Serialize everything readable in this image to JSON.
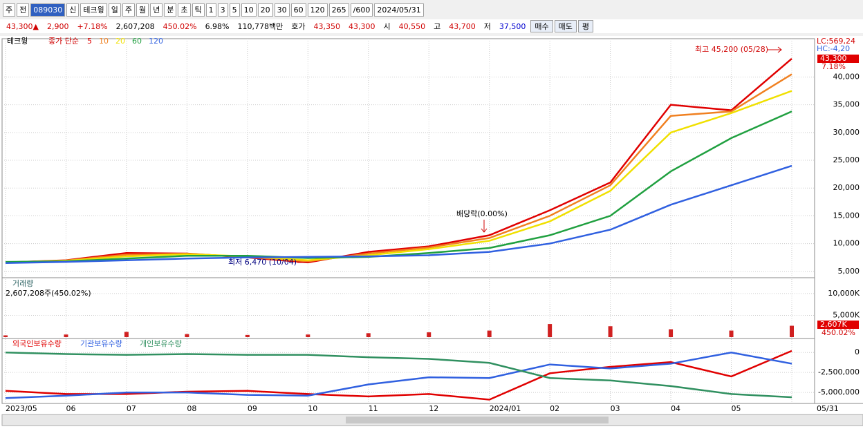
{
  "toolbar": {
    "items": [
      "주",
      "전",
      "089030",
      "신",
      "테크윙",
      "일",
      "주",
      "월",
      "년",
      "분",
      "초",
      "틱",
      "1",
      "3",
      "5",
      "10",
      "20",
      "30",
      "60",
      "120",
      "265",
      "/600",
      "2024/05/31"
    ]
  },
  "quote": {
    "items": [
      {
        "text": "43,300▲",
        "color": "#d00000"
      },
      {
        "text": "2,900",
        "color": "#d00000"
      },
      {
        "text": "+7.18%",
        "color": "#d00000"
      },
      {
        "text": "2,607,208",
        "color": "#000000"
      },
      {
        "text": "450.02%",
        "color": "#d00000"
      },
      {
        "text": "6.98%",
        "color": "#000000"
      },
      {
        "text": "110,778백만",
        "color": "#000000"
      },
      {
        "text": "호가",
        "color": "#000000"
      },
      {
        "text": "43,350",
        "color": "#d00000"
      },
      {
        "text": "43,300",
        "color": "#d00000"
      },
      {
        "text": "시",
        "color": "#000000"
      },
      {
        "text": "40,550",
        "color": "#d00000"
      },
      {
        "text": "고",
        "color": "#000000"
      },
      {
        "text": "43,700",
        "color": "#d00000"
      },
      {
        "text": "저",
        "color": "#000000"
      },
      {
        "text": "37,500",
        "color": "#0000d0"
      },
      {
        "text": "매수",
        "color": "#000000"
      },
      {
        "text": "매도",
        "color": "#000000"
      },
      {
        "text": "평",
        "color": "#000000"
      }
    ]
  },
  "chart_data": [
    {
      "type": "line",
      "tab": "테크윙",
      "legend_title": "종가 단순",
      "categories": [
        "2023/05",
        "06",
        "07",
        "08",
        "09",
        "10",
        "11",
        "12",
        "2024/01",
        "02",
        "03",
        "04",
        "05",
        "05/31"
      ],
      "series": [
        {
          "name": "5",
          "color": "#e00000",
          "values": [
            6600,
            7000,
            8300,
            8200,
            7500,
            6600,
            8500,
            9500,
            11500,
            16000,
            21000,
            35000,
            34000,
            43300
          ]
        },
        {
          "name": "10",
          "color": "#f08020",
          "values": [
            6600,
            6950,
            8000,
            8150,
            7600,
            6800,
            8200,
            9300,
            11000,
            15000,
            20500,
            33000,
            33800,
            40500
          ]
        },
        {
          "name": "20",
          "color": "#f0e000",
          "values": [
            6600,
            6900,
            7700,
            8100,
            7700,
            7000,
            7900,
            9000,
            10500,
            14000,
            19500,
            30000,
            33500,
            37500
          ]
        },
        {
          "name": "60",
          "color": "#20a040",
          "values": [
            6700,
            6800,
            7300,
            7800,
            7800,
            7400,
            7600,
            8300,
            9200,
            11500,
            15000,
            23000,
            29000,
            33800
          ]
        },
        {
          "name": "120",
          "color": "#3060e0",
          "values": [
            6500,
            6700,
            7000,
            7300,
            7500,
            7600,
            7700,
            7900,
            8500,
            10000,
            12500,
            17000,
            20500,
            24000
          ]
        }
      ],
      "ylim": [
        4100,
        46400
      ],
      "yticks": [
        {
          "value": 5000,
          "label": "5,000"
        },
        {
          "value": 10000,
          "label": "10,000"
        },
        {
          "value": 15000,
          "label": "15,000"
        },
        {
          "value": 20000,
          "label": "20,000"
        },
        {
          "value": 25000,
          "label": "25,000"
        },
        {
          "value": 30000,
          "label": "30,000"
        },
        {
          "value": 35000,
          "label": "35,000"
        },
        {
          "value": 40000,
          "label": "40,000"
        }
      ],
      "grid": true,
      "annotations": [
        "최고 45,200 (05/28)",
        "최저 6,470 (10/04)",
        "배당락(0.00%)"
      ],
      "lc": "LC:569,24",
      "hc": "HC:-4,20",
      "last_label": "43,300",
      "change_label": "7.18%"
    },
    {
      "type": "bar",
      "title": "거래량",
      "subtitle": "2,607,208주(450.02%)",
      "categories": [
        "2023/05",
        "06",
        "07",
        "08",
        "09",
        "10",
        "11",
        "12",
        "2024/01",
        "02",
        "03",
        "04",
        "05",
        "05/31"
      ],
      "series": [
        {
          "name": "거래량",
          "color": "#d02020",
          "values": [
            400000,
            600000,
            1200000,
            700000,
            500000,
            600000,
            900000,
            1100000,
            1500000,
            3000000,
            2500000,
            1800000,
            1500000,
            2607208
          ]
        }
      ],
      "ylim": [
        0,
        13000000
      ],
      "yticks": [
        {
          "value": 5000000,
          "label": "5,000K"
        },
        {
          "value": 10000000,
          "label": "10,000K"
        }
      ],
      "grid": true,
      "last_label": "2,607K",
      "ratio_label": "450.02%"
    },
    {
      "type": "line",
      "categories": [
        "2023/05",
        "06",
        "07",
        "08",
        "09",
        "10",
        "11",
        "12",
        "2024/01",
        "02",
        "03",
        "04",
        "05",
        "05/31"
      ],
      "series": [
        {
          "name": "외국인보유수량",
          "color": "#e00000",
          "values": [
            -4800000,
            -5200000,
            -5200000,
            -4900000,
            -4800000,
            -5200000,
            -5500000,
            -5200000,
            -5900000,
            -2600000,
            -1800000,
            -1200000,
            -3000000,
            200000
          ]
        },
        {
          "name": "기관보유수량",
          "color": "#3060e0",
          "values": [
            -5700000,
            -5400000,
            -5000000,
            -5000000,
            -5300000,
            -5400000,
            -4000000,
            -3100000,
            -3200000,
            -1500000,
            -2000000,
            -1400000,
            0,
            -1400000
          ]
        },
        {
          "name": "개인보유수량",
          "color": "#309060",
          "values": [
            0,
            -200000,
            -300000,
            -200000,
            -300000,
            -300000,
            -600000,
            -800000,
            -1300000,
            -3200000,
            -3500000,
            -4200000,
            -5200000,
            -5600000
          ]
        }
      ],
      "ylim": [
        -6200000,
        1400000
      ],
      "yticks": [
        0,
        {
          "value": -2500000,
          "label": "-2,500,000"
        },
        {
          "value": -5000000,
          "label": "-5,000,000"
        }
      ],
      "grid": true
    }
  ]
}
